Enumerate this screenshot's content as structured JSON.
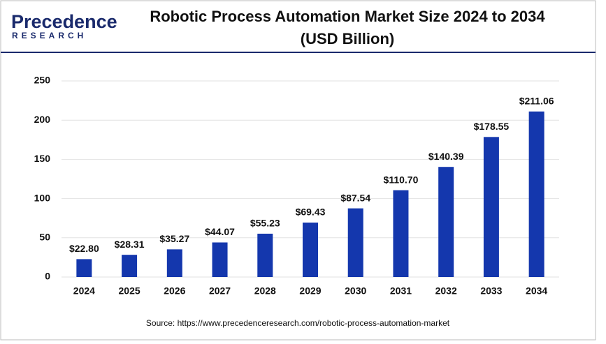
{
  "logo": {
    "name": "Precedence",
    "tagline": "RESEARCH"
  },
  "chart_data": {
    "type": "bar",
    "title": "Robotic Process Automation Market Size 2024 to 2034",
    "subtitle": "(USD Billion)",
    "categories": [
      "2024",
      "2025",
      "2026",
      "2027",
      "2028",
      "2029",
      "2030",
      "2031",
      "2032",
      "2033",
      "2034"
    ],
    "values": [
      22.8,
      28.31,
      35.27,
      44.07,
      55.23,
      69.43,
      87.54,
      110.7,
      140.39,
      178.55,
      211.06
    ],
    "value_labels": [
      "$22.80",
      "$28.31",
      "$35.27",
      "$44.07",
      "$55.23",
      "$69.43",
      "$87.54",
      "$110.70",
      "$140.39",
      "$178.55",
      "$211.06"
    ],
    "color": "#1437ad",
    "ylim": [
      0,
      250
    ],
    "yticks": [
      0,
      50,
      100,
      150,
      200,
      250
    ],
    "grid": true,
    "source": "Source: https://www.precedenceresearch.com/robotic-process-automation-market"
  }
}
